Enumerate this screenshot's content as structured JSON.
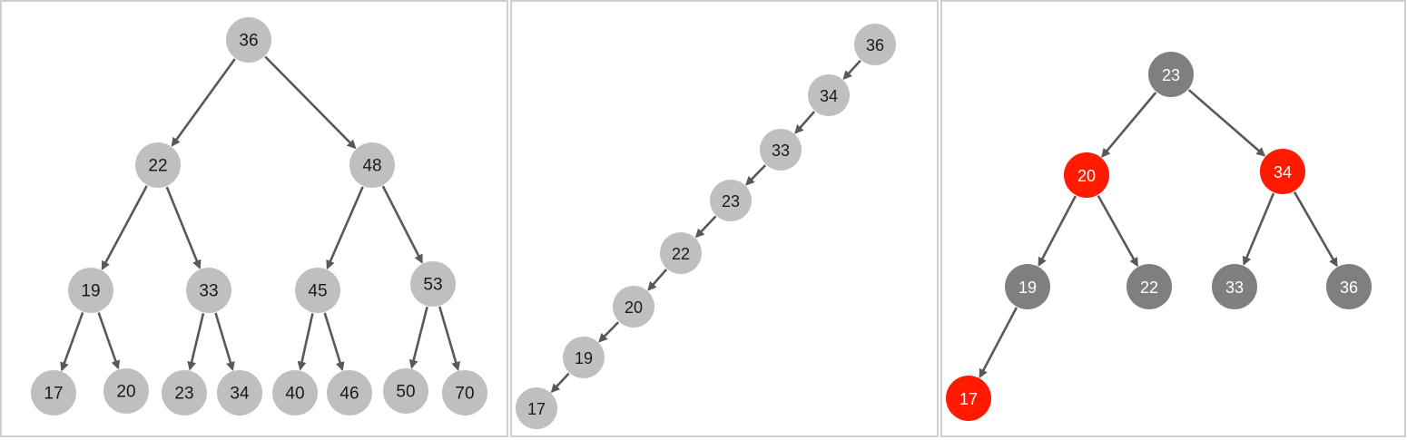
{
  "colors": {
    "gray_node": "#bfbfbf",
    "dark_node": "#7f7f7f",
    "red_node": "#ff1a00",
    "edge": "#595959",
    "dark_text": "#1a1a1a",
    "light_text": "#ffffff"
  },
  "panels": [
    {
      "id": "balanced-bst",
      "nodes": [
        {
          "id": "36",
          "label": "36",
          "color": "gray"
        },
        {
          "id": "22",
          "label": "22",
          "color": "gray"
        },
        {
          "id": "48",
          "label": "48",
          "color": "gray"
        },
        {
          "id": "19",
          "label": "19",
          "color": "gray"
        },
        {
          "id": "33",
          "label": "33",
          "color": "gray"
        },
        {
          "id": "45",
          "label": "45",
          "color": "gray"
        },
        {
          "id": "53",
          "label": "53",
          "color": "gray"
        },
        {
          "id": "17",
          "label": "17",
          "color": "gray"
        },
        {
          "id": "20",
          "label": "20",
          "color": "gray"
        },
        {
          "id": "23",
          "label": "23",
          "color": "gray"
        },
        {
          "id": "34",
          "label": "34",
          "color": "gray"
        },
        {
          "id": "40",
          "label": "40",
          "color": "gray"
        },
        {
          "id": "46",
          "label": "46",
          "color": "gray"
        },
        {
          "id": "50",
          "label": "50",
          "color": "gray"
        },
        {
          "id": "70",
          "label": "70",
          "color": "gray"
        }
      ],
      "edges": [
        [
          "36",
          "22"
        ],
        [
          "36",
          "48"
        ],
        [
          "22",
          "19"
        ],
        [
          "22",
          "33"
        ],
        [
          "48",
          "45"
        ],
        [
          "48",
          "53"
        ],
        [
          "19",
          "17"
        ],
        [
          "19",
          "20"
        ],
        [
          "33",
          "23"
        ],
        [
          "33",
          "34"
        ],
        [
          "45",
          "40"
        ],
        [
          "45",
          "46"
        ],
        [
          "53",
          "50"
        ],
        [
          "53",
          "70"
        ]
      ]
    },
    {
      "id": "degenerate-bst",
      "nodes": [
        {
          "id": "36",
          "label": "36",
          "color": "gray"
        },
        {
          "id": "34",
          "label": "34",
          "color": "gray"
        },
        {
          "id": "33",
          "label": "33",
          "color": "gray"
        },
        {
          "id": "23",
          "label": "23",
          "color": "gray"
        },
        {
          "id": "22",
          "label": "22",
          "color": "gray"
        },
        {
          "id": "20",
          "label": "20",
          "color": "gray"
        },
        {
          "id": "19",
          "label": "19",
          "color": "gray"
        },
        {
          "id": "17",
          "label": "17",
          "color": "gray"
        }
      ],
      "edges": [
        [
          "36",
          "34"
        ],
        [
          "34",
          "33"
        ],
        [
          "33",
          "23"
        ],
        [
          "23",
          "22"
        ],
        [
          "22",
          "20"
        ],
        [
          "20",
          "19"
        ],
        [
          "19",
          "17"
        ]
      ]
    },
    {
      "id": "red-black-tree",
      "nodes": [
        {
          "id": "23",
          "label": "23",
          "color": "dark"
        },
        {
          "id": "20",
          "label": "20",
          "color": "red"
        },
        {
          "id": "34",
          "label": "34",
          "color": "red"
        },
        {
          "id": "19",
          "label": "19",
          "color": "dark"
        },
        {
          "id": "22",
          "label": "22",
          "color": "dark"
        },
        {
          "id": "33",
          "label": "33",
          "color": "dark"
        },
        {
          "id": "36",
          "label": "36",
          "color": "dark"
        },
        {
          "id": "17",
          "label": "17",
          "color": "red"
        }
      ],
      "edges": [
        [
          "23",
          "20"
        ],
        [
          "23",
          "34"
        ],
        [
          "20",
          "19"
        ],
        [
          "20",
          "22"
        ],
        [
          "34",
          "33"
        ],
        [
          "34",
          "36"
        ],
        [
          "19",
          "17"
        ]
      ]
    }
  ]
}
